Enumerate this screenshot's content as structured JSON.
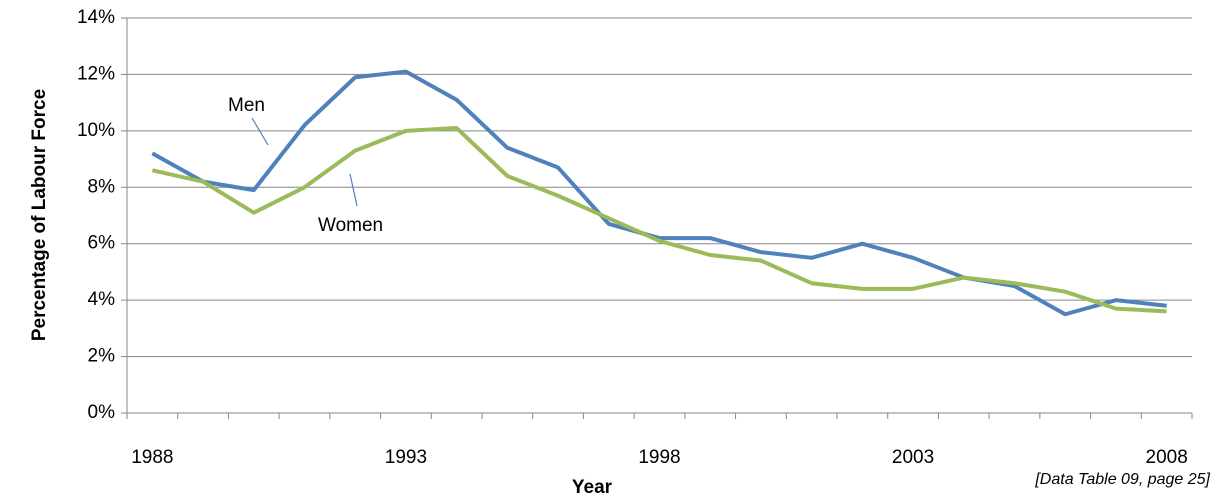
{
  "chart_data": {
    "type": "line",
    "x_label": "Year",
    "y_label": "Percentage of Labour Force",
    "note": "[Data Table 09, page 25]",
    "categories": [
      "1988",
      null,
      null,
      null,
      null,
      "1993",
      null,
      null,
      null,
      null,
      "1998",
      null,
      null,
      null,
      null,
      "2003",
      null,
      null,
      null,
      null,
      "2008"
    ],
    "series": [
      {
        "name": "Men",
        "color": "#4f81bd",
        "values": [
          9.2,
          8.2,
          7.9,
          10.2,
          11.9,
          12.1,
          11.1,
          9.4,
          8.7,
          6.7,
          6.2,
          6.2,
          5.7,
          5.5,
          6.0,
          5.5,
          4.8,
          4.5,
          3.5,
          4.0,
          3.8
        ]
      },
      {
        "name": "Women",
        "color": "#9bbb59",
        "values": [
          8.6,
          8.2,
          7.1,
          8.0,
          9.3,
          10.0,
          10.1,
          8.4,
          7.7,
          6.9,
          6.1,
          5.6,
          5.4,
          4.6,
          4.4,
          4.4,
          4.8,
          4.6,
          4.3,
          3.7,
          3.6
        ]
      }
    ],
    "ylim": [
      0,
      14
    ],
    "yticks": [
      {
        "value": 0,
        "label": "0%"
      },
      {
        "value": 2,
        "label": "2%"
      },
      {
        "value": 4,
        "label": "4%"
      },
      {
        "value": 6,
        "label": "6%"
      },
      {
        "value": 8,
        "label": "8%"
      },
      {
        "value": 10,
        "label": "10%"
      },
      {
        "value": 12,
        "label": "12%"
      },
      {
        "value": 14,
        "label": "14%"
      }
    ],
    "grid": true
  }
}
